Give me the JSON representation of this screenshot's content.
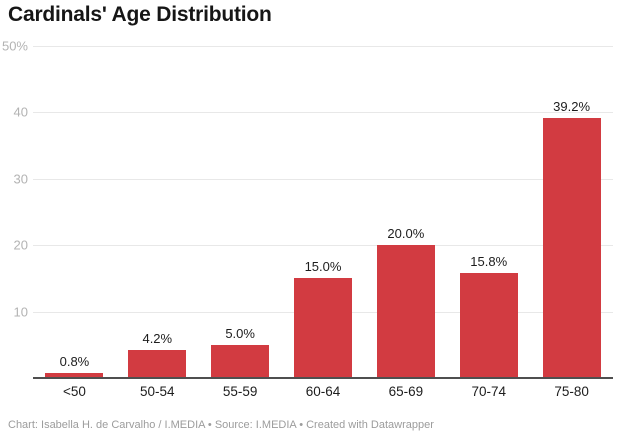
{
  "title": "Cardinals' Age Distribution",
  "footer": "Chart: Isabella H. de Carvalho / I.MEDIA • Source: I.MEDIA • Created with Datawrapper",
  "colors": {
    "bar": "#d23b41",
    "grid": "#e8e8e8",
    "axis": "#4f4f4f",
    "ytick": "#b3b3b3",
    "label": "#1d1d1d",
    "title": "#161616",
    "footer": "#9c9c9c"
  },
  "chart_data": {
    "type": "bar",
    "title": "Cardinals' Age Distribution",
    "categories": [
      "<50",
      "50-54",
      "55-59",
      "60-64",
      "65-69",
      "70-74",
      "75-80"
    ],
    "values": [
      0.8,
      4.2,
      5.0,
      15.0,
      20.0,
      15.8,
      39.2
    ],
    "value_labels": [
      "0.8%",
      "4.2%",
      "5.0%",
      "15.0%",
      "20.0%",
      "15.8%",
      "39.2%"
    ],
    "xlabel": "",
    "ylabel": "",
    "ylim": [
      0,
      50
    ],
    "yticks": [
      {
        "value": 50,
        "label": "50%"
      },
      {
        "value": 40,
        "label": "40"
      },
      {
        "value": 30,
        "label": "30"
      },
      {
        "value": 20,
        "label": "20"
      },
      {
        "value": 10,
        "label": "10"
      }
    ],
    "grid": true,
    "legend": false,
    "bar_label_position": "above"
  }
}
